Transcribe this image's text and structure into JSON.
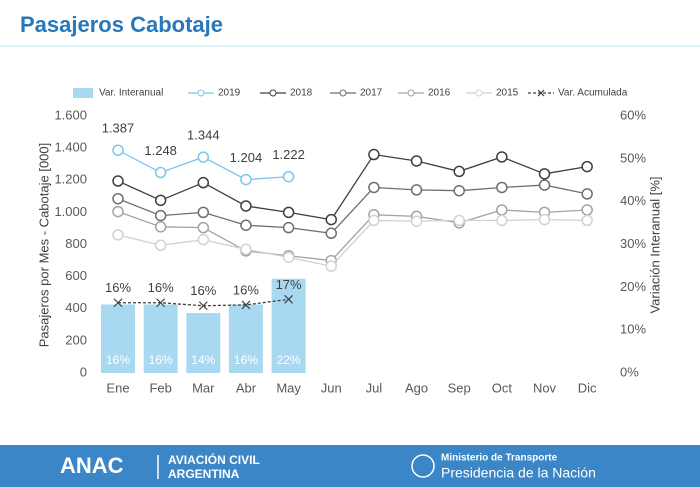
{
  "header": {
    "title": "Pasajeros Cabotaje"
  },
  "chart_data": {
    "type": "combo",
    "categories": [
      "Ene",
      "Feb",
      "Mar",
      "Abr",
      "May",
      "Jun",
      "Jul",
      "Ago",
      "Sep",
      "Oct",
      "Nov",
      "Dic"
    ],
    "y_label": "Pasajeros por Mes - Cabotaje [000]",
    "y2_label": "Variación Interanual [%]",
    "ylim": [
      0,
      1600
    ],
    "yticks": [
      0,
      200,
      400,
      600,
      800,
      {
        "value": 1000,
        "label": "1.000"
      },
      {
        "value": 1200,
        "label": "1.200"
      },
      {
        "value": 1400,
        "label": "1.400"
      },
      {
        "value": 1600,
        "label": "1.600"
      }
    ],
    "y2lim": [
      0,
      60
    ],
    "y2ticks": [
      {
        "value": 0,
        "label": "0%"
      },
      {
        "value": 10,
        "label": "10%"
      },
      {
        "value": 20,
        "label": "20%"
      },
      {
        "value": 30,
        "label": "30%"
      },
      {
        "value": 40,
        "label": "40%"
      },
      {
        "value": 50,
        "label": "50%"
      },
      {
        "value": 60,
        "label": "60%"
      }
    ],
    "series": [
      {
        "name": "Var. Interanual",
        "style": "bar",
        "axis": "y2",
        "color": "#a9d9f1",
        "values": [
          16,
          16,
          14,
          16,
          22,
          null,
          null,
          null,
          null,
          null,
          null,
          null
        ],
        "value_labels": [
          "16%",
          "16%",
          "14%",
          "16%",
          "22%",
          null,
          null,
          null,
          null,
          null,
          null,
          null
        ]
      },
      {
        "name": "2019",
        "style": "line",
        "marker": "circle",
        "color": "#7cc6ea",
        "values": [
          1387,
          1248,
          1344,
          1204,
          1222,
          null,
          null,
          null,
          null,
          null,
          null,
          null
        ],
        "value_labels": [
          "1.387",
          "1.248",
          "1.344",
          "1.204",
          "1.222",
          null,
          null,
          null,
          null,
          null,
          null,
          null
        ]
      },
      {
        "name": "2018",
        "style": "line",
        "marker": "circle",
        "color": "#3f3f3f",
        "values": [
          1195,
          1075,
          1185,
          1040,
          1000,
          955,
          1360,
          1320,
          1255,
          1345,
          1240,
          1285
        ]
      },
      {
        "name": "2017",
        "style": "line",
        "marker": "circle",
        "color": "#6f6f6f",
        "values": [
          1085,
          980,
          1000,
          920,
          905,
          870,
          1155,
          1140,
          1135,
          1155,
          1170,
          1115
        ]
      },
      {
        "name": "2016",
        "style": "line",
        "marker": "circle",
        "color": "#a3a3a3",
        "values": [
          1005,
          910,
          905,
          760,
          730,
          700,
          985,
          975,
          935,
          1015,
          1000,
          1015
        ]
      },
      {
        "name": "2015",
        "style": "line",
        "marker": "circle",
        "color": "#d2d2d2",
        "values": [
          860,
          795,
          830,
          770,
          720,
          665,
          950,
          945,
          950,
          950,
          955,
          950
        ]
      },
      {
        "name": "Var. Acumulada",
        "style": "line",
        "marker": "x",
        "dashed": true,
        "axis": "y2",
        "color": "#3f3f3f",
        "values": [
          16.4,
          16.4,
          15.7,
          15.9,
          17.2,
          null,
          null,
          null,
          null,
          null,
          null,
          null
        ],
        "value_labels": [
          "16%",
          "16%",
          "16%",
          "16%",
          "17%",
          null,
          null,
          null,
          null,
          null,
          null,
          null
        ]
      }
    ]
  },
  "footer": {
    "logo": "ANAC",
    "org_lines": [
      "AVIACIÓN CIVIL",
      "ARGENTINA"
    ],
    "ministry": "Ministerio de Transporte",
    "presidency": "Presidencia de la Nación"
  }
}
